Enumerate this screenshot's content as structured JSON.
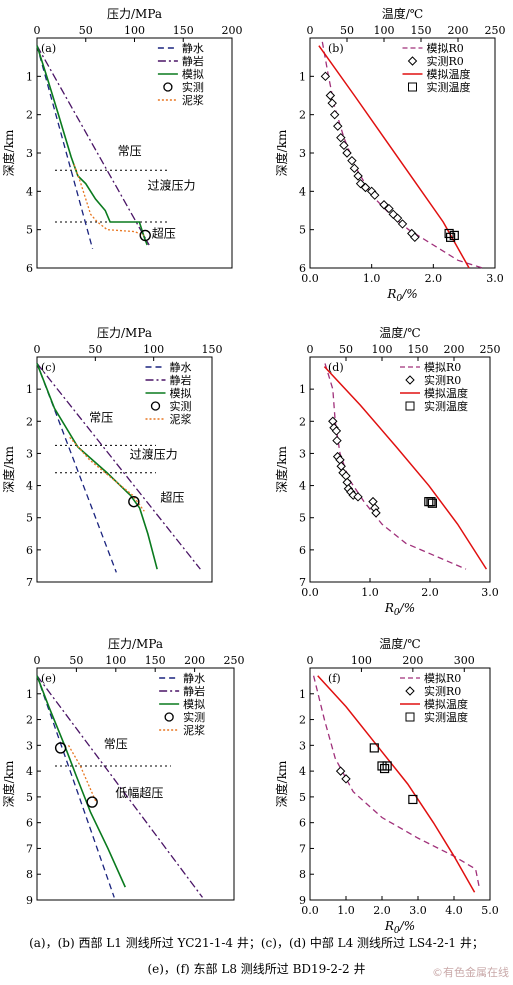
{
  "caption": {
    "line1": "(a)，(b) 西部 L1 测线所过 YC21-1-4 井；(c)，(d) 中部 L4 测线所过 LS4-2-1 井；",
    "line2": "(e)，(f) 东部 L8 测线所过 BD19-2-2 井"
  },
  "watermark": "©有色金属在线",
  "colors": {
    "hydro": "#1a237e",
    "litho": "#4a1466",
    "sim": "#0a7a1e",
    "mud": "#e87722",
    "r0": "#a0307a",
    "temp": "#e01010"
  },
  "chart_data": [
    {
      "id": "a",
      "type": "line",
      "panel_label": "(a)",
      "title": "压力/MPa",
      "ylabel": "深度/km",
      "xlim": [
        0,
        200
      ],
      "ylim": [
        0,
        6
      ],
      "xticks": [
        0,
        50,
        100,
        150,
        200
      ],
      "yticks": [
        1,
        2,
        3,
        4,
        5,
        6
      ],
      "legend": [
        "静水",
        "静岩",
        "模拟",
        "实测",
        "泥浆"
      ],
      "series": [
        {
          "name": "静水",
          "style": "dash",
          "color": "#1a237e",
          "points": [
            [
              0,
              0.2
            ],
            [
              57,
              5.5
            ]
          ]
        },
        {
          "name": "静岩",
          "style": "dashdot",
          "color": "#4a1466",
          "points": [
            [
              0,
              0.2
            ],
            [
              115,
              5.4
            ]
          ]
        },
        {
          "name": "模拟",
          "style": "solid",
          "color": "#0a7a1e",
          "points": [
            [
              0,
              0.2
            ],
            [
              10,
              1.0
            ],
            [
              22,
              2.0
            ],
            [
              35,
              3.1
            ],
            [
              42,
              3.6
            ],
            [
              50,
              3.8
            ],
            [
              60,
              4.2
            ],
            [
              70,
              4.5
            ],
            [
              75,
              4.8
            ],
            [
              105,
              4.8
            ],
            [
              110,
              5.2
            ],
            [
              113,
              5.4
            ]
          ]
        },
        {
          "name": "泥浆",
          "style": "dot",
          "color": "#e87722",
          "points": [
            [
              38,
              3.3
            ],
            [
              45,
              3.8
            ],
            [
              50,
              4.2
            ],
            [
              55,
              4.6
            ],
            [
              62,
              4.8
            ],
            [
              72,
              5.0
            ],
            [
              100,
              5.05
            ],
            [
              110,
              5.15
            ]
          ]
        }
      ],
      "measured": [
        {
          "x": 111,
          "y": 5.15
        }
      ],
      "annotations": [
        {
          "text": "常压",
          "x": 95,
          "y": 3.05
        },
        {
          "text": "过渡压力",
          "x": 138,
          "y": 3.95
        },
        {
          "text": "超压",
          "x": 130,
          "y": 5.2
        }
      ],
      "zone_lines": [
        3.45,
        4.8
      ]
    },
    {
      "id": "b",
      "type": "scatter",
      "panel_label": "(b)",
      "title": "温度/℃",
      "xlabel": "R0/%",
      "ylabel": "深度/km",
      "xlim": [
        0,
        3.0
      ],
      "ylim": [
        0,
        6
      ],
      "temp_lim": [
        0,
        250
      ],
      "xticks": [
        0,
        1.0,
        2.0,
        3.0
      ],
      "temp_ticks": [
        0,
        50,
        100,
        150,
        200,
        250
      ],
      "yticks": [
        1,
        2,
        3,
        4,
        5,
        6
      ],
      "legend": [
        "模拟R0",
        "实测R0",
        "模拟温度",
        "实测温度"
      ],
      "sim_r0": [
        [
          0.2,
          0.1
        ],
        [
          0.3,
          1.0
        ],
        [
          0.4,
          1.8
        ],
        [
          0.55,
          2.6
        ],
        [
          0.75,
          3.4
        ],
        [
          1.0,
          4.1
        ],
        [
          1.3,
          4.6
        ],
        [
          1.6,
          5.0
        ],
        [
          2.0,
          5.4
        ],
        [
          2.4,
          5.8
        ],
        [
          2.8,
          6.0
        ]
      ],
      "measured_r0": [
        [
          0.25,
          1.0
        ],
        [
          0.33,
          1.5
        ],
        [
          0.36,
          1.7
        ],
        [
          0.4,
          2.0
        ],
        [
          0.45,
          2.3
        ],
        [
          0.5,
          2.6
        ],
        [
          0.55,
          2.8
        ],
        [
          0.6,
          3.0
        ],
        [
          0.68,
          3.2
        ],
        [
          0.72,
          3.4
        ],
        [
          0.78,
          3.6
        ],
        [
          0.82,
          3.8
        ],
        [
          0.9,
          3.9
        ],
        [
          1.0,
          4.0
        ],
        [
          1.05,
          4.1
        ],
        [
          1.2,
          4.35
        ],
        [
          1.28,
          4.45
        ],
        [
          1.35,
          4.6
        ],
        [
          1.42,
          4.7
        ],
        [
          1.5,
          4.85
        ],
        [
          1.65,
          5.1
        ],
        [
          1.7,
          5.2
        ]
      ],
      "sim_temp": [
        [
          12,
          0.2
        ],
        [
          60,
          1.5
        ],
        [
          100,
          2.6
        ],
        [
          140,
          3.7
        ],
        [
          180,
          4.8
        ],
        [
          215,
          6.0
        ]
      ],
      "measured_temp": [
        [
          188,
          5.1
        ],
        [
          190,
          5.2
        ],
        [
          195,
          5.15
        ]
      ]
    },
    {
      "id": "c",
      "type": "line",
      "panel_label": "(c)",
      "title": "压力/MPa",
      "ylabel": "深度/km",
      "xlim": [
        0,
        150
      ],
      "ylim": [
        0,
        7
      ],
      "xticks": [
        0,
        50,
        100,
        150
      ],
      "yticks": [
        1,
        2,
        3,
        4,
        5,
        6,
        7
      ],
      "legend": [
        "静水",
        "静岩",
        "模拟",
        "实测",
        "泥浆"
      ],
      "series": [
        {
          "name": "静水",
          "style": "dash",
          "color": "#1a237e",
          "points": [
            [
              0,
              0.2
            ],
            [
              68,
              6.7
            ]
          ]
        },
        {
          "name": "静岩",
          "style": "dashdot",
          "color": "#4a1466",
          "points": [
            [
              0,
              0.2
            ],
            [
              140,
              6.6
            ]
          ]
        },
        {
          "name": "模拟",
          "style": "solid",
          "color": "#0a7a1e",
          "points": [
            [
              0,
              0.2
            ],
            [
              15,
              1.6
            ],
            [
              35,
              2.8
            ],
            [
              60,
              3.6
            ],
            [
              80,
              4.3
            ],
            [
              88,
              4.7
            ],
            [
              95,
              5.5
            ],
            [
              103,
              6.6
            ]
          ]
        },
        {
          "name": "泥浆",
          "style": "dot",
          "color": "#e87722",
          "points": [
            [
              28,
              2.5
            ],
            [
              45,
              3.2
            ],
            [
              65,
              3.8
            ],
            [
              82,
              4.3
            ],
            [
              92,
              4.8
            ]
          ]
        }
      ],
      "measured": [
        {
          "x": 83,
          "y": 4.5
        }
      ],
      "annotations": [
        {
          "text": "常压",
          "x": 55,
          "y": 2.0
        },
        {
          "text": "过渡压力",
          "x": 100,
          "y": 3.15
        },
        {
          "text": "超压",
          "x": 116,
          "y": 4.5
        }
      ],
      "zone_lines": [
        2.75,
        3.6
      ]
    },
    {
      "id": "d",
      "type": "scatter",
      "panel_label": "(d)",
      "title": "温度/℃",
      "xlabel": "R0/%",
      "ylabel": "深度/km",
      "xlim": [
        0,
        3.0
      ],
      "ylim": [
        0,
        7
      ],
      "temp_lim": [
        0,
        250
      ],
      "xticks": [
        0,
        1.0,
        2.0,
        3.0
      ],
      "temp_ticks": [
        0,
        50,
        100,
        150,
        200,
        250
      ],
      "yticks": [
        1,
        2,
        3,
        4,
        5,
        6,
        7
      ],
      "legend": [
        "模拟R0",
        "实测R0",
        "模拟温度",
        "实测温度"
      ],
      "sim_r0": [
        [
          0.25,
          0.2
        ],
        [
          0.38,
          1.0
        ],
        [
          0.42,
          2.0
        ],
        [
          0.5,
          3.0
        ],
        [
          0.65,
          3.8
        ],
        [
          0.9,
          4.5
        ],
        [
          1.2,
          5.2
        ],
        [
          1.6,
          5.8
        ],
        [
          2.1,
          6.2
        ],
        [
          2.6,
          6.6
        ]
      ],
      "measured_r0": [
        [
          0.38,
          2.0
        ],
        [
          0.4,
          2.2
        ],
        [
          0.44,
          2.3
        ],
        [
          0.45,
          2.6
        ],
        [
          0.46,
          3.1
        ],
        [
          0.5,
          3.2
        ],
        [
          0.52,
          3.4
        ],
        [
          0.55,
          3.6
        ],
        [
          0.6,
          3.7
        ],
        [
          0.62,
          3.9
        ],
        [
          0.64,
          4.1
        ],
        [
          0.68,
          4.2
        ],
        [
          0.72,
          4.3
        ],
        [
          0.8,
          4.35
        ],
        [
          1.05,
          4.5
        ],
        [
          1.08,
          4.7
        ],
        [
          1.1,
          4.85
        ]
      ],
      "sim_temp": [
        [
          20,
          0.3
        ],
        [
          70,
          1.5
        ],
        [
          120,
          2.8
        ],
        [
          165,
          4.0
        ],
        [
          205,
          5.2
        ],
        [
          245,
          6.6
        ]
      ],
      "measured_temp": [
        [
          165,
          4.5
        ],
        [
          168,
          4.5
        ],
        [
          170,
          4.55
        ]
      ]
    },
    {
      "id": "e",
      "type": "line",
      "panel_label": "(e)",
      "title": "压力/MPa",
      "ylabel": "深度/km",
      "xlim": [
        0,
        250
      ],
      "ylim": [
        0,
        9
      ],
      "xticks": [
        0,
        50,
        100,
        150,
        200,
        250
      ],
      "yticks": [
        1,
        2,
        3,
        4,
        5,
        6,
        7,
        8,
        9
      ],
      "legend": [
        "静水",
        "静岩",
        "模拟",
        "实测",
        "泥浆"
      ],
      "series": [
        {
          "name": "静水",
          "style": "dash",
          "color": "#1a237e",
          "points": [
            [
              0,
              0.3
            ],
            [
              98,
              8.9
            ]
          ]
        },
        {
          "name": "静岩",
          "style": "dashdot",
          "color": "#4a1466",
          "points": [
            [
              0,
              0.3
            ],
            [
              210,
              8.9
            ]
          ]
        },
        {
          "name": "模拟",
          "style": "solid",
          "color": "#0a7a1e",
          "points": [
            [
              0,
              0.3
            ],
            [
              15,
              1.5
            ],
            [
              35,
              3.0
            ],
            [
              50,
              4.2
            ],
            [
              68,
              5.6
            ],
            [
              90,
              7.0
            ],
            [
              112,
              8.5
            ]
          ]
        },
        {
          "name": "泥浆",
          "style": "dot",
          "color": "#e87722",
          "points": [
            [
              40,
              3.0
            ],
            [
              55,
              3.8
            ],
            [
              65,
              4.5
            ],
            [
              75,
              5.2
            ]
          ]
        }
      ],
      "measured": [
        {
          "x": 30,
          "y": 3.1
        },
        {
          "x": 70,
          "y": 5.2
        }
      ],
      "annotations": [
        {
          "text": "常压",
          "x": 100,
          "y": 3.1
        },
        {
          "text": "低幅超压",
          "x": 130,
          "y": 5.0
        }
      ],
      "zone_lines": [
        3.8
      ]
    },
    {
      "id": "f",
      "type": "scatter",
      "panel_label": "(f)",
      "title": "温度/℃",
      "xlabel": "R0/%",
      "ylabel": "深度/km",
      "xlim": [
        0,
        5.0
      ],
      "ylim": [
        0,
        9
      ],
      "temp_lim": [
        0,
        350
      ],
      "xticks": [
        0,
        1.0,
        2.0,
        3.0,
        4.0,
        5.0
      ],
      "temp_ticks": [
        0,
        100,
        200,
        300
      ],
      "yticks": [
        1,
        2,
        3,
        4,
        5,
        6,
        7,
        8,
        9
      ],
      "legend": [
        "模拟R0",
        "实测R0",
        "模拟温度",
        "实测温度"
      ],
      "sim_r0": [
        [
          0.1,
          0.3
        ],
        [
          0.4,
          2.0
        ],
        [
          0.7,
          3.5
        ],
        [
          1.2,
          4.8
        ],
        [
          2.0,
          5.8
        ],
        [
          3.0,
          6.6
        ],
        [
          4.0,
          7.3
        ],
        [
          4.6,
          7.8
        ],
        [
          4.7,
          8.5
        ]
      ],
      "measured_r0": [
        [
          0.85,
          4.0
        ],
        [
          1.0,
          4.3
        ]
      ],
      "sim_temp": [
        [
          15,
          0.3
        ],
        [
          70,
          1.5
        ],
        [
          130,
          3.0
        ],
        [
          190,
          4.5
        ],
        [
          240,
          6.0
        ],
        [
          280,
          7.3
        ],
        [
          320,
          8.7
        ]
      ],
      "measured_temp": [
        [
          125,
          3.1
        ],
        [
          140,
          3.8
        ],
        [
          145,
          3.9
        ],
        [
          150,
          3.8
        ],
        [
          200,
          5.1
        ]
      ]
    }
  ]
}
